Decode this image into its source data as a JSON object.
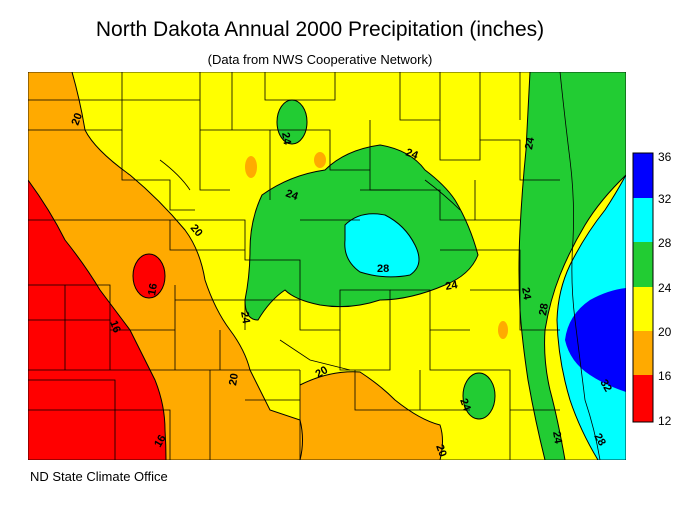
{
  "title": "North Dakota Annual 2000 Precipitation (inches)",
  "subtitle": "(Data from NWS Cooperative Network)",
  "footer": "ND State Climate Office",
  "legend": {
    "breaks": [
      "12",
      "16",
      "20",
      "24",
      "28",
      "32",
      "36"
    ],
    "colors": [
      "#ff0000",
      "#ffaa00",
      "#ffff00",
      "#22cc33",
      "#00ffff",
      "#0000ff"
    ]
  },
  "contour_labels": [
    {
      "text": "20"
    },
    {
      "text": "24"
    },
    {
      "text": "24"
    },
    {
      "text": "24"
    },
    {
      "text": "24"
    },
    {
      "text": "20"
    },
    {
      "text": "16"
    },
    {
      "text": "28"
    },
    {
      "text": "24"
    },
    {
      "text": "16"
    },
    {
      "text": "24"
    },
    {
      "text": "24"
    },
    {
      "text": "28"
    },
    {
      "text": "20"
    },
    {
      "text": "20"
    },
    {
      "text": "24"
    },
    {
      "text": "16"
    },
    {
      "text": "20"
    },
    {
      "text": "24"
    },
    {
      "text": "28"
    },
    {
      "text": "32"
    }
  ]
}
